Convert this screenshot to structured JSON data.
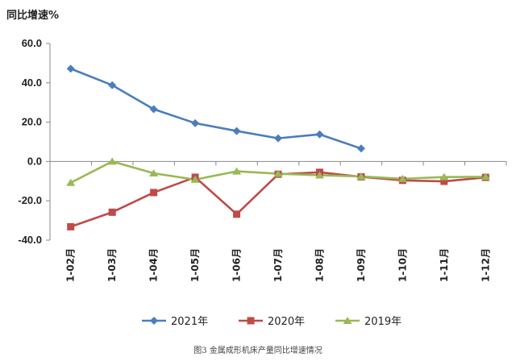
{
  "chart_data": {
    "type": "line",
    "ylabel": "同比增速%",
    "caption": "图3 金属成形机床产量同比增速情况",
    "categories": [
      "1-02月",
      "1-03月",
      "1-04月",
      "1-05月",
      "1-06月",
      "1-07月",
      "1-08月",
      "1-09月",
      "1-10月",
      "1-11月",
      "1-12月"
    ],
    "ylim": [
      -40,
      60
    ],
    "yticks": [
      60,
      40,
      20,
      0,
      -20,
      -40
    ],
    "ytick_labels": [
      "60.0",
      "40.0",
      "20.0",
      "0.0",
      "-20.0",
      "-40.0"
    ],
    "grid": false,
    "legend_position": "bottom",
    "series": [
      {
        "name": "2021年",
        "color": "#4a7ebb",
        "marker": "diamond",
        "values": [
          47.2,
          38.8,
          26.6,
          19.5,
          15.5,
          11.8,
          13.8,
          6.6,
          null,
          null,
          null
        ]
      },
      {
        "name": "2020年",
        "color": "#be4b48",
        "marker": "square",
        "values": [
          -33.2,
          -25.8,
          -15.8,
          -8.0,
          -26.8,
          -6.5,
          -5.5,
          -7.8,
          -9.6,
          -10.1,
          -8.1
        ]
      },
      {
        "name": "2019年",
        "color": "#98b954",
        "marker": "triangle",
        "values": [
          -10.8,
          0.0,
          -6.0,
          -9.2,
          -5.0,
          -6.2,
          -7.0,
          -7.6,
          -8.8,
          -7.9,
          -7.8
        ]
      }
    ]
  }
}
